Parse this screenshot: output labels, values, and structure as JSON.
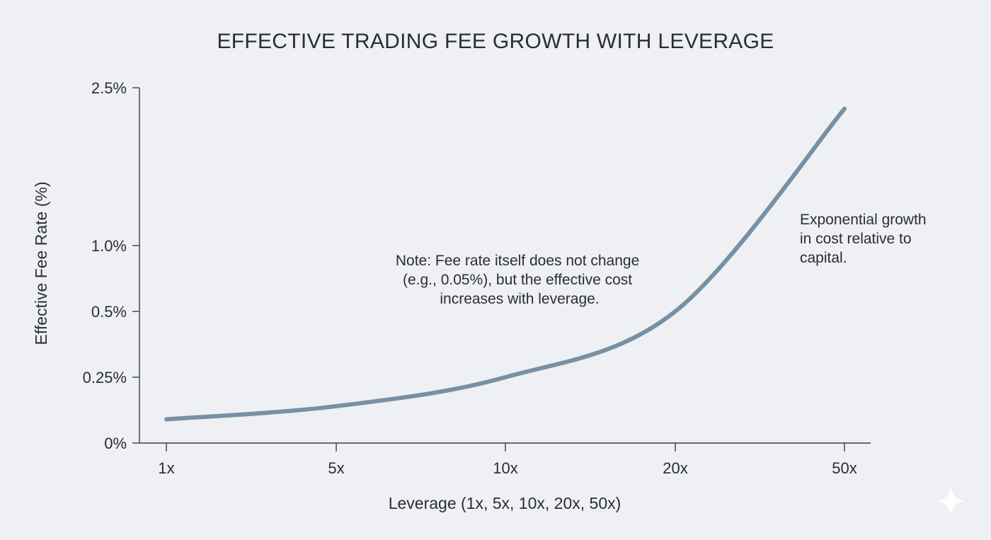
{
  "chart_data": {
    "type": "line",
    "title": "EFFECTIVE TRADING FEE GROWTH WITH LEVERAGE",
    "xlabel": "Leverage (1x, 5x, 10x, 20x, 50x)",
    "ylabel": "Effective Fee Rate (%)",
    "categories": [
      "1x",
      "5x",
      "10x",
      "20x",
      "50x"
    ],
    "y_ticks": [
      {
        "label": "0%",
        "value": 0
      },
      {
        "label": "0.25%",
        "value": 0.25
      },
      {
        "label": "0.5%",
        "value": 0.5
      },
      {
        "label": "1.0%",
        "value": 1.0
      },
      {
        "label": "2.5%",
        "value": 2.5
      }
    ],
    "ylim": [
      0,
      2.5
    ],
    "y_scale": "nonlinear (log-like), ticks unevenly valued",
    "grid": false,
    "series": [
      {
        "x": [
          1,
          5,
          10,
          20,
          50
        ],
        "values": [
          0.09,
          0.14,
          0.25,
          0.5,
          2.3
        ],
        "color": "#7890a3"
      }
    ],
    "annotations": [
      {
        "id": "note",
        "lines": [
          "Note: Fee rate itself does not change",
          "(e.g., 0.05%), but the effective cost",
          "increases with leverage."
        ]
      },
      {
        "id": "growth",
        "lines": [
          "Exponential growth",
          "in cost relative to",
          "capital."
        ]
      }
    ]
  },
  "decor": {
    "sparkle_icon": "sparkle-icon"
  }
}
